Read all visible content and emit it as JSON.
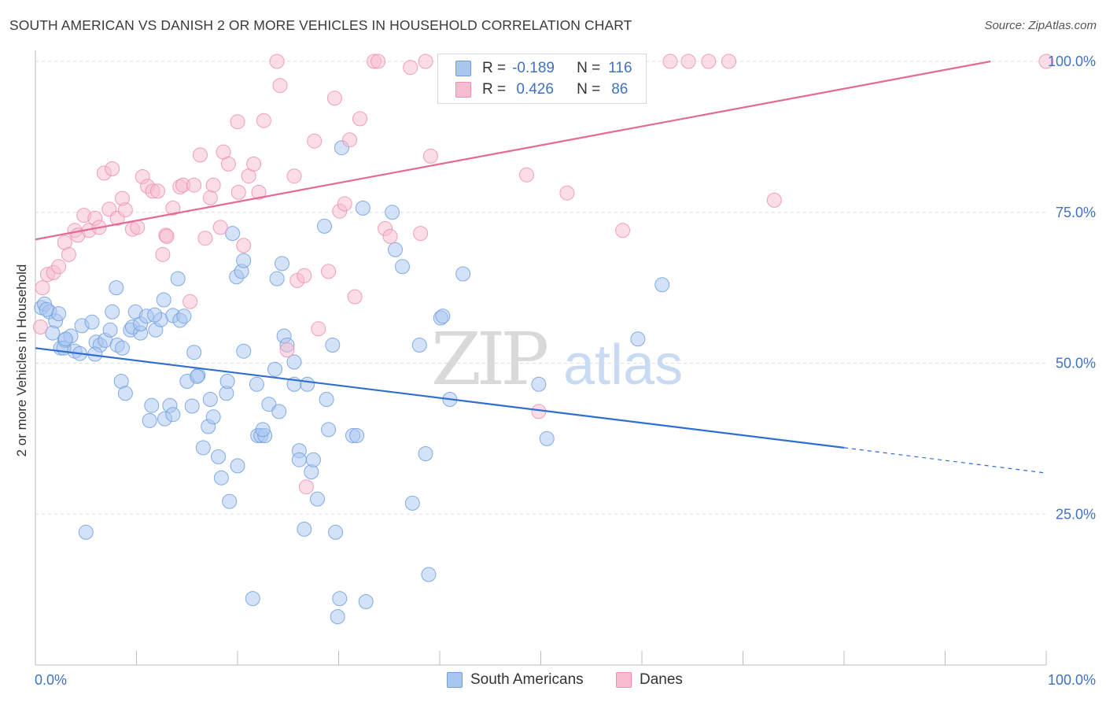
{
  "title": "SOUTH AMERICAN VS DANISH 2 OR MORE VEHICLES IN HOUSEHOLD CORRELATION CHART",
  "source": "Source: ZipAtlas.com",
  "watermark": {
    "zip": "ZIP",
    "atlas": "atlas"
  },
  "legend": {
    "r_label": "R =",
    "n_label": "N =",
    "series": [
      {
        "name": "South Americans",
        "r": "-0.189",
        "n": "116",
        "fill": "#a9c6ef",
        "stroke": "#6f9fe0"
      },
      {
        "name": "Danes",
        "r": " 0.426",
        "n": "86",
        "fill": "#f7bcd0",
        "stroke": "#ee8fb0"
      }
    ]
  },
  "chart_data": {
    "type": "scatter",
    "title": "SOUTH AMERICAN VS DANISH 2 OR MORE VEHICLES IN HOUSEHOLD CORRELATION CHART",
    "xlabel": "",
    "ylabel": "2 or more Vehicles in Household",
    "xlim": [
      0,
      100
    ],
    "ylim": [
      0,
      102
    ],
    "x_tick_labels": [
      "0.0%",
      "100.0%"
    ],
    "y_ticks": [
      25,
      50,
      75,
      100
    ],
    "y_tick_labels": [
      "25.0%",
      "50.0%",
      "75.0%",
      "100.0%"
    ],
    "grid": "horizontal dashed",
    "legend_position": "top-center",
    "series": [
      {
        "name": "South Americans",
        "color": "#6f9fe0",
        "trend": {
          "x0": 0,
          "y0": 52.5,
          "x1": 80,
          "y1": 36.0,
          "dashed_to_x": 100,
          "dashed_to_y": 31.8
        },
        "points": [
          [
            0.6,
            59.2
          ],
          [
            0.9,
            59.8
          ],
          [
            1.4,
            58.5
          ],
          [
            2.0,
            57.0
          ],
          [
            1.7,
            55.0
          ],
          [
            2.5,
            52.5
          ],
          [
            2.9,
            53.8
          ],
          [
            3.5,
            54.5
          ],
          [
            3.9,
            52.0
          ],
          [
            4.4,
            51.6
          ],
          [
            4.6,
            56.2
          ],
          [
            5.6,
            56.8
          ],
          [
            6.0,
            53.5
          ],
          [
            6.4,
            53.0
          ],
          [
            5.9,
            51.5
          ],
          [
            6.9,
            53.8
          ],
          [
            7.4,
            55.5
          ],
          [
            8.1,
            53.0
          ],
          [
            8.6,
            52.5
          ],
          [
            7.6,
            58.5
          ],
          [
            9.4,
            55.5
          ],
          [
            9.6,
            56.0
          ],
          [
            9.9,
            58.5
          ],
          [
            10.4,
            55.0
          ],
          [
            10.4,
            56.5
          ],
          [
            11.0,
            57.8
          ],
          [
            11.9,
            55.5
          ],
          [
            12.4,
            57.2
          ],
          [
            12.7,
            60.5
          ],
          [
            13.6,
            57.9
          ],
          [
            14.3,
            57.1
          ],
          [
            14.7,
            57.8
          ],
          [
            14.1,
            64.0
          ],
          [
            8.0,
            62.5
          ],
          [
            2.3,
            58.2
          ],
          [
            2.8,
            52.5
          ],
          [
            1.1,
            58.9
          ],
          [
            8.5,
            47.0
          ],
          [
            8.9,
            45.0
          ],
          [
            11.3,
            40.5
          ],
          [
            11.5,
            43.0
          ],
          [
            12.8,
            40.8
          ],
          [
            13.3,
            43.0
          ],
          [
            13.6,
            41.5
          ],
          [
            15.0,
            47.0
          ],
          [
            15.5,
            42.9
          ],
          [
            15.7,
            51.8
          ],
          [
            16.1,
            48.0
          ],
          [
            16.6,
            36.0
          ],
          [
            17.3,
            44.0
          ],
          [
            17.1,
            39.5
          ],
          [
            17.6,
            41.1
          ],
          [
            18.1,
            34.5
          ],
          [
            18.4,
            31.0
          ],
          [
            18.9,
            45.0
          ],
          [
            19.0,
            47.0
          ],
          [
            19.2,
            27.1
          ],
          [
            19.5,
            71.5
          ],
          [
            19.9,
            64.3
          ],
          [
            20.0,
            33.0
          ],
          [
            20.4,
            65.2
          ],
          [
            20.6,
            67.0
          ],
          [
            20.6,
            52.0
          ],
          [
            21.9,
            46.5
          ],
          [
            22.0,
            38.0
          ],
          [
            22.3,
            38.0
          ],
          [
            22.7,
            38.0
          ],
          [
            22.5,
            39.0
          ],
          [
            23.1,
            43.2
          ],
          [
            23.7,
            49.0
          ],
          [
            23.9,
            64.0
          ],
          [
            24.1,
            42.0
          ],
          [
            24.4,
            66.5
          ],
          [
            24.6,
            54.5
          ],
          [
            24.9,
            53.0
          ],
          [
            25.6,
            50.2
          ],
          [
            25.6,
            46.5
          ],
          [
            26.1,
            35.5
          ],
          [
            26.1,
            34.0
          ],
          [
            26.9,
            46.5
          ],
          [
            27.3,
            32.0
          ],
          [
            27.5,
            34.0
          ],
          [
            27.9,
            27.5
          ],
          [
            26.6,
            22.5
          ],
          [
            28.6,
            72.7
          ],
          [
            28.8,
            44.0
          ],
          [
            29.0,
            39.0
          ],
          [
            29.4,
            53.0
          ],
          [
            29.7,
            22.0
          ],
          [
            30.1,
            11.0
          ],
          [
            30.3,
            85.7
          ],
          [
            29.9,
            8.0
          ],
          [
            31.4,
            38.0
          ],
          [
            31.8,
            38.0
          ],
          [
            32.4,
            75.7
          ],
          [
            32.7,
            10.5
          ],
          [
            35.3,
            75.0
          ],
          [
            35.6,
            68.8
          ],
          [
            36.3,
            66.0
          ],
          [
            38.0,
            53.0
          ],
          [
            38.6,
            35.0
          ],
          [
            38.9,
            15.0
          ],
          [
            37.3,
            26.8
          ],
          [
            40.1,
            57.5
          ],
          [
            40.3,
            57.8
          ],
          [
            41.0,
            44.0
          ],
          [
            42.3,
            64.8
          ],
          [
            49.8,
            46.5
          ],
          [
            50.6,
            37.5
          ],
          [
            59.6,
            54.0
          ],
          [
            62.0,
            63.0
          ],
          [
            5.0,
            22.0
          ],
          [
            21.5,
            11.0
          ],
          [
            16.0,
            47.8
          ],
          [
            11.8,
            58.0
          ],
          [
            3.0,
            54.0
          ]
        ]
      },
      {
        "name": "Danes",
        "color": "#ee8fb0",
        "trend": {
          "x0": 0,
          "y0": 70.5,
          "x1": 94.5,
          "y1": 100.0
        },
        "points": [
          [
            0.5,
            56.0
          ],
          [
            0.7,
            62.5
          ],
          [
            1.2,
            64.7
          ],
          [
            1.8,
            65.0
          ],
          [
            2.3,
            66.0
          ],
          [
            2.9,
            70.0
          ],
          [
            3.3,
            68.0
          ],
          [
            3.9,
            72.0
          ],
          [
            4.2,
            71.2
          ],
          [
            4.8,
            74.5
          ],
          [
            5.3,
            72.0
          ],
          [
            5.9,
            74.0
          ],
          [
            6.3,
            72.5
          ],
          [
            6.8,
            81.5
          ],
          [
            7.3,
            75.5
          ],
          [
            7.6,
            82.2
          ],
          [
            8.1,
            74.0
          ],
          [
            8.6,
            77.3
          ],
          [
            8.9,
            75.4
          ],
          [
            9.6,
            72.2
          ],
          [
            10.1,
            72.5
          ],
          [
            10.6,
            80.9
          ],
          [
            11.1,
            79.3
          ],
          [
            11.6,
            78.5
          ],
          [
            12.1,
            78.5
          ],
          [
            12.6,
            68.0
          ],
          [
            12.9,
            71.2
          ],
          [
            13.6,
            75.7
          ],
          [
            14.3,
            79.2
          ],
          [
            14.6,
            79.5
          ],
          [
            15.3,
            60.2
          ],
          [
            15.7,
            79.5
          ],
          [
            16.3,
            84.5
          ],
          [
            16.8,
            70.7
          ],
          [
            17.3,
            77.4
          ],
          [
            17.6,
            79.5
          ],
          [
            18.3,
            72.5
          ],
          [
            18.6,
            85.0
          ],
          [
            19.1,
            83.0
          ],
          [
            20.1,
            78.3
          ],
          [
            20.6,
            69.5
          ],
          [
            21.1,
            81.0
          ],
          [
            21.6,
            83.0
          ],
          [
            22.1,
            78.3
          ],
          [
            20.0,
            90.0
          ],
          [
            22.6,
            90.2
          ],
          [
            23.9,
            100.0
          ],
          [
            24.2,
            96.0
          ],
          [
            24.9,
            52.2
          ],
          [
            25.6,
            81.0
          ],
          [
            25.9,
            63.7
          ],
          [
            26.6,
            64.5
          ],
          [
            26.8,
            29.5
          ],
          [
            27.6,
            86.8
          ],
          [
            28.0,
            55.7
          ],
          [
            29.0,
            65.2
          ],
          [
            29.6,
            93.9
          ],
          [
            30.1,
            75.2
          ],
          [
            30.6,
            76.4
          ],
          [
            31.1,
            87.0
          ],
          [
            31.6,
            61.0
          ],
          [
            32.1,
            90.5
          ],
          [
            33.5,
            100.0
          ],
          [
            33.9,
            100.0
          ],
          [
            34.6,
            72.3
          ],
          [
            35.1,
            71.0
          ],
          [
            37.1,
            99.0
          ],
          [
            38.1,
            71.5
          ],
          [
            38.6,
            100.0
          ],
          [
            39.1,
            84.3
          ],
          [
            41.1,
            100.0
          ],
          [
            41.6,
            100.0
          ],
          [
            42.1,
            100.0
          ],
          [
            48.6,
            81.2
          ],
          [
            49.8,
            42.0
          ],
          [
            52.6,
            78.2
          ],
          [
            58.1,
            72.0
          ],
          [
            62.8,
            100.0
          ],
          [
            64.6,
            100.0
          ],
          [
            66.6,
            100.0
          ],
          [
            68.6,
            100.0
          ],
          [
            73.1,
            77.0
          ],
          [
            100.0,
            100.0
          ],
          [
            56.1,
            100.0
          ],
          [
            56.6,
            100.0
          ],
          [
            13.0,
            71.0
          ]
        ]
      }
    ]
  }
}
